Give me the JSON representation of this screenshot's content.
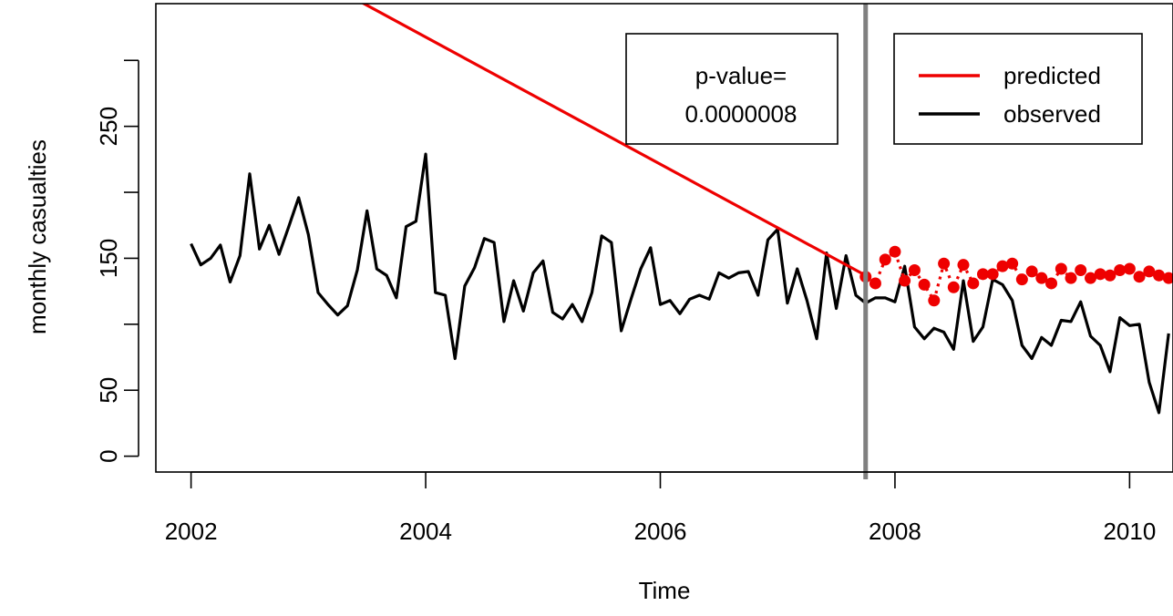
{
  "chart_data": {
    "type": "line",
    "title": "",
    "xlabel": "Time",
    "ylabel": "monthly casualties",
    "xlim": [
      2001.7,
      2010.37
    ],
    "ylim": [
      -12,
      343
    ],
    "x_ticks": [
      2002,
      2004,
      2006,
      2008,
      2010
    ],
    "y_ticks": [
      0,
      50,
      100,
      150,
      200,
      250,
      300
    ],
    "y_tick_labels": [
      "0",
      "50",
      "",
      "150",
      "",
      "250",
      ""
    ],
    "grid": false,
    "intervention_x": 2007.75,
    "series": [
      {
        "name": "predicted",
        "color": "#ee0000",
        "style": "solid",
        "x": [
          2002.0,
          2007.75
        ],
        "values": [
          414,
          137
        ]
      },
      {
        "name": "predicted",
        "color": "#ee0000",
        "style": "dotted-points",
        "x": [
          2007.75,
          2007.833,
          2007.917,
          2008.0,
          2008.083,
          2008.167,
          2008.25,
          2008.333,
          2008.417,
          2008.5,
          2008.583,
          2008.667,
          2008.75,
          2008.833,
          2008.917,
          2009.0,
          2009.083,
          2009.167,
          2009.25,
          2009.333,
          2009.417,
          2009.5,
          2009.583,
          2009.667,
          2009.75,
          2009.833,
          2009.917,
          2010.0,
          2010.083,
          2010.167,
          2010.25,
          2010.333
        ],
        "values": [
          136,
          131,
          149,
          155,
          133,
          141,
          130,
          118,
          146,
          128,
          145,
          131,
          138,
          138,
          144,
          146,
          134,
          140,
          135,
          131,
          142,
          135,
          141,
          135,
          138,
          137,
          141,
          142,
          136,
          140,
          137,
          135
        ]
      },
      {
        "name": "observed",
        "color": "#000000",
        "style": "solid",
        "x": [
          2002.0,
          2002.083,
          2002.167,
          2002.25,
          2002.333,
          2002.417,
          2002.5,
          2002.583,
          2002.667,
          2002.75,
          2002.833,
          2002.917,
          2003.0,
          2003.083,
          2003.167,
          2003.25,
          2003.333,
          2003.417,
          2003.5,
          2003.583,
          2003.667,
          2003.75,
          2003.833,
          2003.917,
          2004.0,
          2004.083,
          2004.167,
          2004.25,
          2004.333,
          2004.417,
          2004.5,
          2004.583,
          2004.667,
          2004.75,
          2004.833,
          2004.917,
          2005.0,
          2005.083,
          2005.167,
          2005.25,
          2005.333,
          2005.417,
          2005.5,
          2005.583,
          2005.667,
          2005.75,
          2005.833,
          2005.917,
          2006.0,
          2006.083,
          2006.167,
          2006.25,
          2006.333,
          2006.417,
          2006.5,
          2006.583,
          2006.667,
          2006.75,
          2006.833,
          2006.917,
          2007.0,
          2007.083,
          2007.167,
          2007.25,
          2007.333,
          2007.417,
          2007.5,
          2007.583,
          2007.667,
          2007.75,
          2007.833,
          2007.917,
          2008.0,
          2008.083,
          2008.167,
          2008.25,
          2008.333,
          2008.417,
          2008.5,
          2008.583,
          2008.667,
          2008.75,
          2008.833,
          2008.917,
          2009.0,
          2009.083,
          2009.167,
          2009.25,
          2009.333,
          2009.417,
          2009.5,
          2009.583,
          2009.667,
          2009.75,
          2009.833,
          2009.917,
          2010.0,
          2010.083,
          2010.167,
          2010.25,
          2010.333
        ],
        "values": [
          161,
          145,
          150,
          160,
          132,
          152,
          214,
          157,
          175,
          153,
          174,
          196,
          168,
          124,
          115,
          107,
          114,
          141,
          186,
          142,
          137,
          120,
          174,
          178,
          229,
          124,
          122,
          74,
          129,
          143,
          165,
          162,
          102,
          133,
          110,
          139,
          148,
          109,
          104,
          115,
          102,
          124,
          167,
          162,
          95,
          119,
          142,
          158,
          115,
          118,
          108,
          119,
          122,
          119,
          139,
          135,
          139,
          140,
          122,
          164,
          172,
          116,
          142,
          118,
          89,
          154,
          112,
          152,
          122,
          116,
          120,
          120,
          117,
          144,
          98,
          89,
          97,
          94,
          81,
          133,
          87,
          98,
          134,
          130,
          118,
          84,
          74,
          90,
          84,
          103,
          102,
          117,
          91,
          84,
          64,
          105,
          99,
          100,
          56,
          33,
          93
        ]
      }
    ],
    "legend": {
      "placement": "top-right",
      "entries": [
        {
          "label": "predicted",
          "color": "#ee0000"
        },
        {
          "label": "observed",
          "color": "#000000"
        }
      ]
    },
    "annotation": {
      "line1": "p-value=",
      "line2": "0.0000008"
    }
  }
}
